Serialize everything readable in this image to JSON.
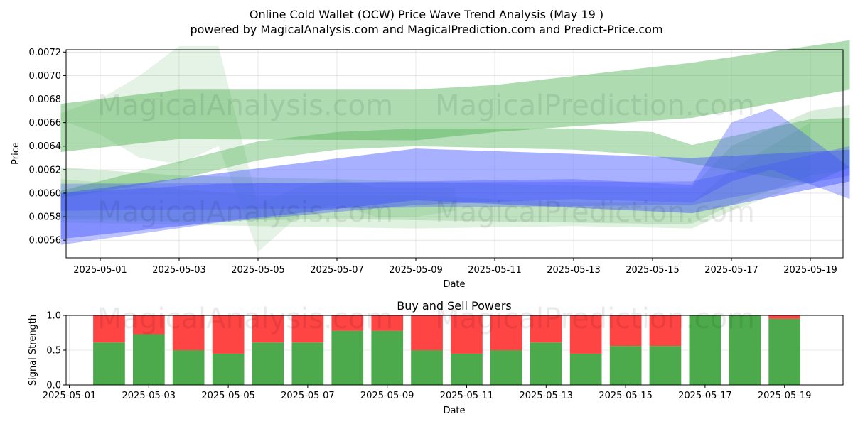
{
  "header": {
    "title": "Online Cold Wallet (OCW) Price Wave Trend Analysis (May 19 )",
    "subtitle": "powered by MagicalAnalysis.com and MagicalPrediction.com and Predict-Price.com"
  },
  "watermarks": [
    "MagicalAnalysis.com",
    "MagicalPrediction.com"
  ],
  "colors": {
    "green_band": "#4caf50",
    "blue_band": "#3f51ff",
    "buy": "#4caa4c",
    "sell": "#ff4444"
  },
  "chart_data": [
    {
      "type": "area",
      "xlabel": "Date",
      "ylabel": "Price",
      "ylim": [
        0.00545,
        0.00722
      ],
      "yticks": [
        "0.0056",
        "0.0058",
        "0.0060",
        "0.0062",
        "0.0064",
        "0.0066",
        "0.0068",
        "0.0070",
        "0.0072"
      ],
      "xticks": [
        "2025-05-01",
        "2025-05-03",
        "2025-05-05",
        "2025-05-07",
        "2025-05-09",
        "2025-05-11",
        "2025-05-13",
        "2025-05-15",
        "2025-05-17",
        "2025-05-19"
      ],
      "grid": true,
      "series": [
        {
          "color": "green",
          "opacity": 0.45,
          "x": [
            "2025-04-30",
            "2025-05-03",
            "2025-05-09",
            "2025-05-11",
            "2025-05-16",
            "2025-05-20"
          ],
          "lower": [
            0.00635,
            0.00646,
            0.00645,
            0.00652,
            0.00664,
            0.00688
          ],
          "upper": [
            0.00676,
            0.00688,
            0.00688,
            0.00692,
            0.00711,
            0.0073
          ]
        },
        {
          "color": "green",
          "opacity": 0.4,
          "x": [
            "2025-04-30",
            "2025-05-03",
            "2025-05-05",
            "2025-05-07",
            "2025-05-09",
            "2025-05-13",
            "2025-05-15",
            "2025-05-16",
            "2025-05-19",
            "2025-05-20"
          ],
          "lower": [
            0.00596,
            0.00612,
            0.00628,
            0.00637,
            0.0064,
            0.00637,
            0.00632,
            0.00625,
            0.00608,
            0.00622
          ],
          "upper": [
            0.00602,
            0.00627,
            0.00644,
            0.00652,
            0.00655,
            0.00655,
            0.00652,
            0.00641,
            0.00663,
            0.00664
          ]
        },
        {
          "color": "green",
          "opacity": 0.15,
          "x": [
            "2025-04-30",
            "2025-05-01",
            "2025-05-02",
            "2025-05-03",
            "2025-05-04",
            "2025-05-05",
            "2025-05-06",
            "2025-05-07",
            "2025-05-08",
            "2025-05-09",
            "2025-05-10"
          ],
          "lower": [
            0.00662,
            0.0065,
            0.0063,
            0.00625,
            0.0064,
            0.0055,
            0.0058,
            0.0059,
            0.0058,
            0.0058,
            0.00585
          ],
          "upper": [
            0.00668,
            0.0068,
            0.007,
            0.00725,
            0.00725,
            0.0059,
            0.00605,
            0.00612,
            0.00605,
            0.00605,
            0.00605
          ]
        },
        {
          "color": "green",
          "opacity": 0.22,
          "x": [
            "2025-04-30",
            "2025-05-03",
            "2025-05-07",
            "2025-05-11",
            "2025-05-15",
            "2025-05-16",
            "2025-05-17",
            "2025-05-19",
            "2025-05-20"
          ],
          "lower": [
            0.00578,
            0.00576,
            0.00578,
            0.00576,
            0.00574,
            0.00574,
            0.0059,
            0.00615,
            0.0062
          ],
          "upper": [
            0.00622,
            0.00615,
            0.00612,
            0.00608,
            0.00605,
            0.00605,
            0.0064,
            0.0067,
            0.00675
          ]
        },
        {
          "color": "green",
          "opacity": 0.18,
          "x": [
            "2025-04-30",
            "2025-05-05",
            "2025-05-09",
            "2025-05-13",
            "2025-05-16",
            "2025-05-17",
            "2025-05-19"
          ],
          "lower": [
            0.00575,
            0.00572,
            0.0057,
            0.00572,
            0.0057,
            0.00585,
            0.0061
          ],
          "upper": [
            0.00612,
            0.00598,
            0.00598,
            0.00592,
            0.00592,
            0.0062,
            0.0066
          ]
        },
        {
          "color": "blue",
          "opacity": 0.45,
          "x": [
            "2025-04-30",
            "2025-05-09",
            "2025-05-16",
            "2025-05-20"
          ],
          "lower": [
            0.00561,
            0.00594,
            0.00583,
            0.0061
          ],
          "upper": [
            0.006,
            0.00638,
            0.0063,
            0.00637
          ]
        },
        {
          "color": "blue",
          "opacity": 0.35,
          "x": [
            "2025-04-30",
            "2025-05-04",
            "2025-05-09",
            "2025-05-13",
            "2025-05-16",
            "2025-05-17",
            "2025-05-18",
            "2025-05-20"
          ],
          "lower": [
            0.00556,
            0.00575,
            0.0059,
            0.00595,
            0.00592,
            0.0061,
            0.0062,
            0.00595
          ],
          "upper": [
            0.006,
            0.00608,
            0.0061,
            0.00612,
            0.00607,
            0.0066,
            0.00672,
            0.00622
          ]
        },
        {
          "color": "blue",
          "opacity": 0.3,
          "x": [
            "2025-04-30",
            "2025-05-16",
            "2025-05-20"
          ],
          "lower": [
            0.00585,
            0.0059,
            0.00615
          ],
          "upper": [
            0.00608,
            0.0061,
            0.0064
          ]
        }
      ]
    },
    {
      "type": "bar",
      "title": "Buy and Sell Powers",
      "xlabel": "Date",
      "ylabel": "Signal Strength",
      "ylim": [
        0,
        1
      ],
      "yticks": [
        "0.0",
        "0.5",
        "1.0"
      ],
      "xticks": [
        "2025-05-01",
        "2025-05-03",
        "2025-05-05",
        "2025-05-07",
        "2025-05-09",
        "2025-05-11",
        "2025-05-13",
        "2025-05-15",
        "2025-05-17",
        "2025-05-19"
      ],
      "categories": [
        "2025-05-02",
        "2025-05-03",
        "2025-05-04",
        "2025-05-05",
        "2025-05-06",
        "2025-05-07",
        "2025-05-08",
        "2025-05-09",
        "2025-05-10",
        "2025-05-11",
        "2025-05-12",
        "2025-05-13",
        "2025-05-14",
        "2025-05-15",
        "2025-05-16",
        "2025-05-17",
        "2025-05-18",
        "2025-05-19"
      ],
      "series": [
        {
          "values": [
            0.61,
            0.73,
            0.5,
            0.45,
            0.61,
            0.61,
            0.78,
            0.78,
            0.5,
            0.45,
            0.5,
            0.61,
            0.45,
            0.56,
            0.56,
            1.0,
            1.0,
            0.95
          ]
        },
        {
          "values": [
            0.39,
            0.27,
            0.5,
            0.55,
            0.39,
            0.39,
            0.22,
            0.22,
            0.5,
            0.55,
            0.5,
            0.39,
            0.55,
            0.44,
            0.44,
            0.0,
            0.0,
            0.05
          ]
        }
      ]
    }
  ]
}
